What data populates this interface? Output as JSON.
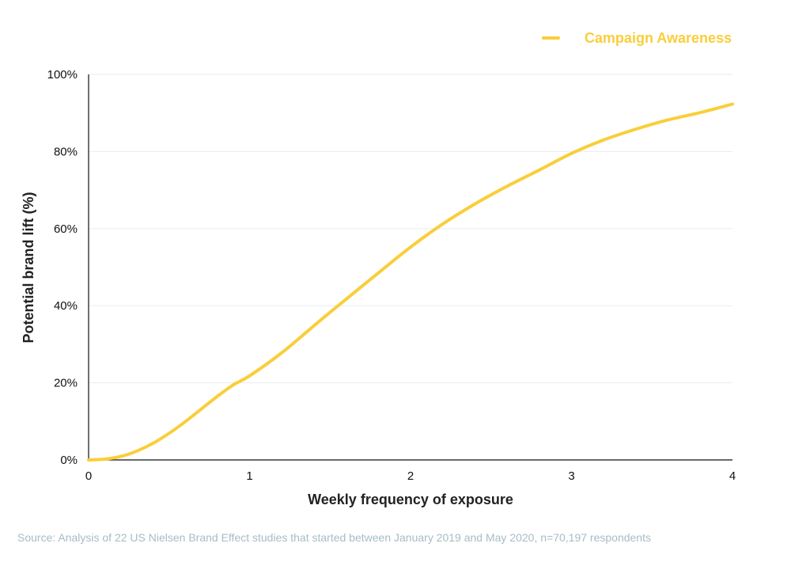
{
  "chart_data": {
    "type": "line",
    "xlabel": "Weekly frequency of exposure",
    "ylabel": "Potential brand lift (%)",
    "xlim": [
      0,
      4
    ],
    "ylim": [
      0,
      100
    ],
    "x_ticks": [
      {
        "value": 0,
        "label": "0"
      },
      {
        "value": 1,
        "label": "1"
      },
      {
        "value": 2,
        "label": "2"
      },
      {
        "value": 3,
        "label": "3"
      },
      {
        "value": 4,
        "label": "4"
      }
    ],
    "y_ticks": [
      {
        "value": 0,
        "label": "0%"
      },
      {
        "value": 20,
        "label": "20%"
      },
      {
        "value": 40,
        "label": "40%"
      },
      {
        "value": 60,
        "label": "60%"
      },
      {
        "value": 80,
        "label": "80%"
      },
      {
        "value": 100,
        "label": "100%"
      }
    ],
    "grid": "horizontal",
    "legend_position": "top-right",
    "series": [
      {
        "name": "Campaign Awareness",
        "color": "#F9CE3B",
        "x": [
          0,
          0.1,
          0.2,
          0.3,
          0.4,
          0.5,
          0.6,
          0.7,
          0.8,
          0.9,
          1.0,
          1.2,
          1.4,
          1.5,
          1.6,
          1.8,
          2.0,
          2.2,
          2.4,
          2.6,
          2.8,
          3.0,
          3.2,
          3.4,
          3.6,
          3.8,
          4.0
        ],
        "y": [
          0,
          0.2,
          0.9,
          2.3,
          4.3,
          6.9,
          9.9,
          13.2,
          16.5,
          19.5,
          21.8,
          27.8,
          34.8,
          38.3,
          41.7,
          48.5,
          55.2,
          61.2,
          66.4,
          71.0,
          75.2,
          79.5,
          83.0,
          85.8,
          88.2,
          90.1,
          92.3
        ]
      }
    ]
  },
  "source_note": "Source: Analysis of 22 US Nielsen Brand Effect studies that started between January 2019 and May 2020, n=70,197 respondents",
  "colors": {
    "series": "#F9CE3B",
    "axis": "#111111",
    "grid": "#E6EDF0",
    "source_text": "#A7BCC6"
  }
}
